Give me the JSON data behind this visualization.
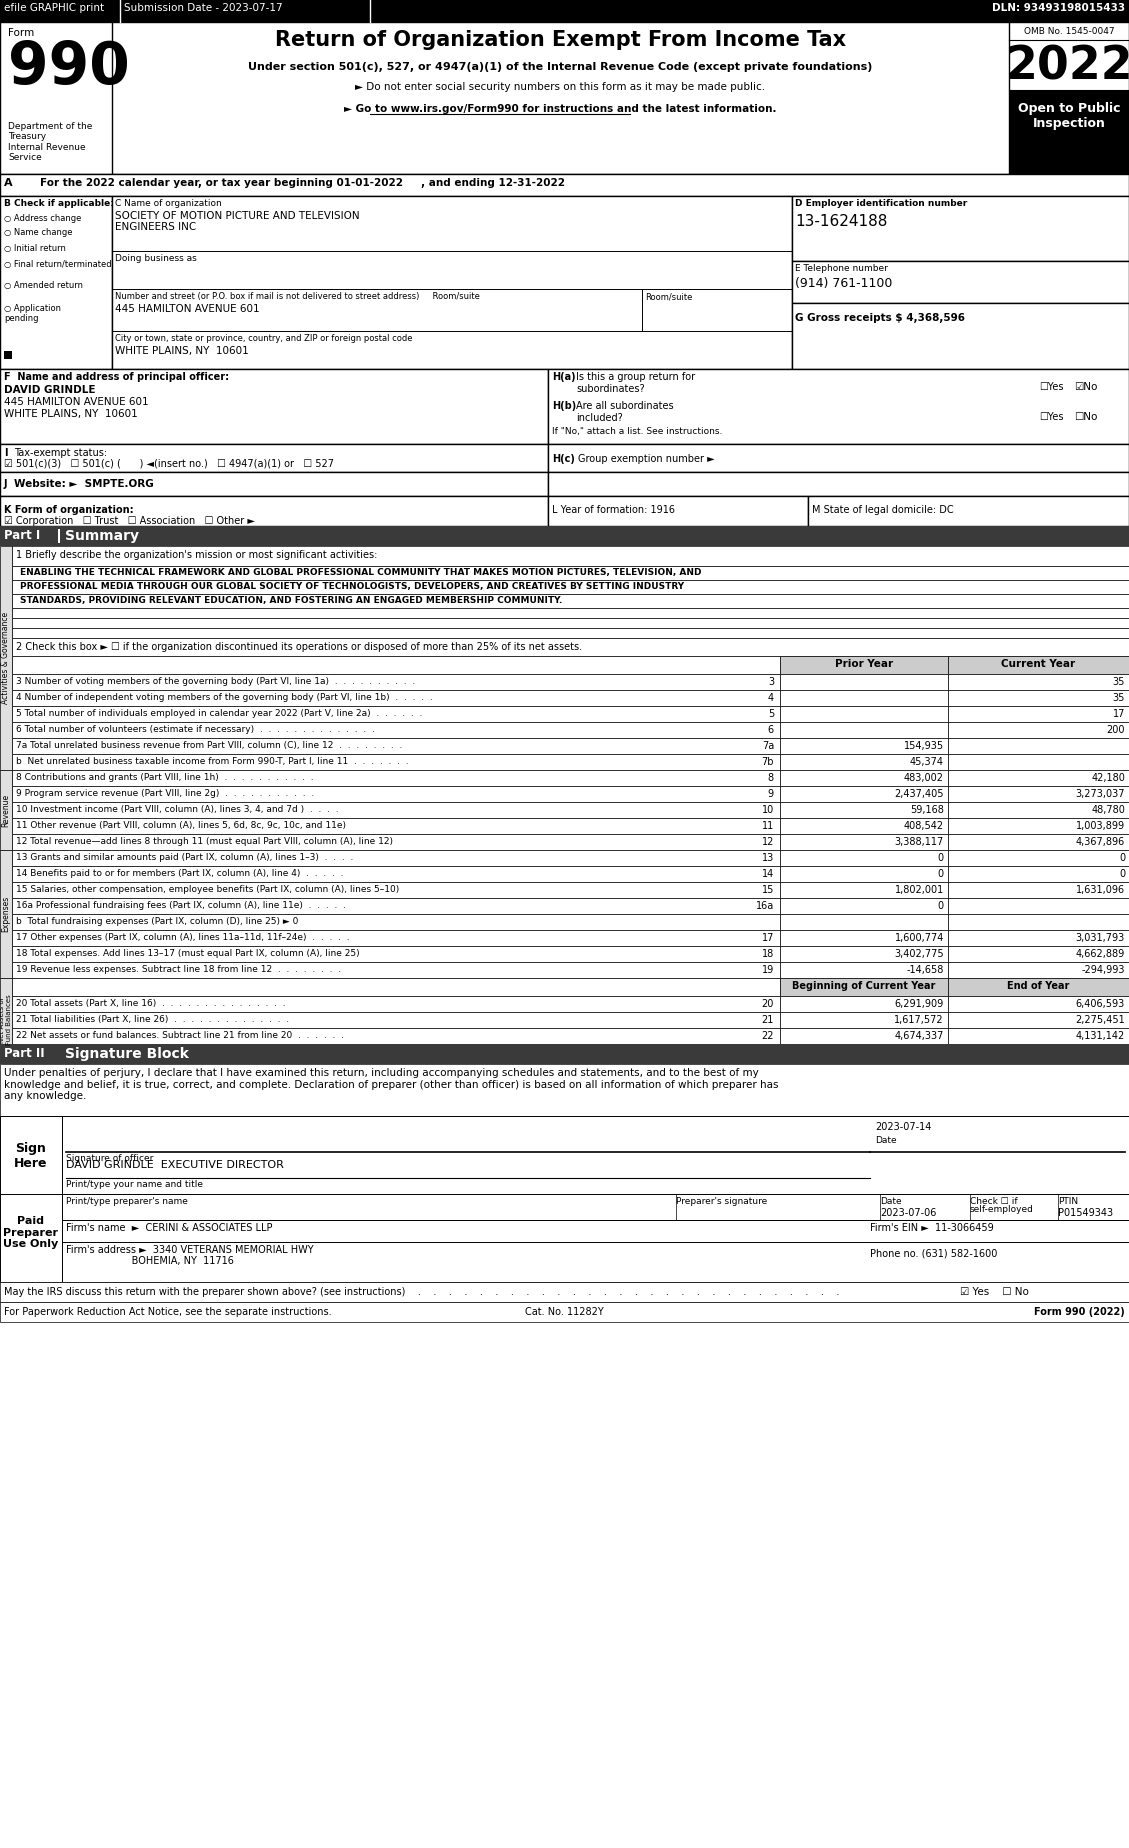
{
  "title": "Return of Organization Exempt From Income Tax",
  "subtitle1": "Under section 501(c), 527, or 4947(a)(1) of the Internal Revenue Code (except private foundations)",
  "subtitle2": "► Do not enter social security numbers on this form as it may be made public.",
  "subtitle3": "► Go to www.irs.gov/Form990 for instructions and the latest information.",
  "omb": "OMB No. 1545-0047",
  "year": "2022",
  "tax_year_line": "For the 2022 calendar year, or tax year beginning 01-01-2022     , and ending 12-31-2022",
  "org_name1": "SOCIETY OF MOTION PICTURE AND TELEVISION",
  "org_name2": "ENGINEERS INC",
  "dba_label": "Doing business as",
  "address_label": "Number and street (or P.O. box if mail is not delivered to street address)     Room/suite",
  "address": "445 HAMILTON AVENUE 601",
  "city_label": "City or town, state or province, country, and ZIP or foreign postal code",
  "city": "WHITE PLAINS, NY  10601",
  "ein": "13-1624188",
  "phone": "(914) 761-1100",
  "gross_receipts": "4,368,596",
  "officer_name": "DAVID GRINDLE",
  "officer_addr1": "445 HAMILTON AVENUE 601",
  "officer_addr2": "WHITE PLAINS, NY  10601",
  "mission1": "ENABLING THE TECHNICAL FRAMEWORK AND GLOBAL PROFESSIONAL COMMUNITY THAT MAKES MOTION PICTURES, TELEVISION, AND",
  "mission2": "PROFESSIONAL MEDIA THROUGH OUR GLOBAL SOCIETY OF TECHNOLOGISTS, DEVELOPERS, AND CREATIVES BY SETTING INDUSTRY",
  "mission3": "STANDARDS, PROVIDING RELEVANT EDUCATION, AND FOSTERING AN ENGAGED MEMBERSHIP COMMUNITY.",
  "line2_text": "2 Check this box ► ☐ if the organization discontinued its operations or disposed of more than 25% of its net assets.",
  "col_prior": "Prior Year",
  "col_curr": "Current Year",
  "col_begin": "Beginning of Current Year",
  "col_end": "End of Year",
  "rows_ag": [
    [
      "3",
      "3 Number of voting members of the governing body (Part VI, line 1a)  .  .  .  .  .  .  .  .  .  .",
      "",
      "35"
    ],
    [
      "4",
      "4 Number of independent voting members of the governing body (Part VI, line 1b)  .  .  .  .  .",
      "",
      "35"
    ],
    [
      "5",
      "5 Total number of individuals employed in calendar year 2022 (Part V, line 2a)  .  .  .  .  .  .",
      "",
      "17"
    ],
    [
      "6",
      "6 Total number of volunteers (estimate if necessary)  .  .  .  .  .  .  .  .  .  .  .  .  .  .",
      "",
      "200"
    ],
    [
      "7a",
      "7a Total unrelated business revenue from Part VIII, column (C), line 12  .  .  .  .  .  .  .  .",
      "154,935",
      ""
    ],
    [
      "7b",
      "b  Net unrelated business taxable income from Form 990-T, Part I, line 11  .  .  .  .  .  .  .",
      "45,374",
      ""
    ]
  ],
  "rows_rev": [
    [
      "8",
      "8 Contributions and grants (Part VIII, line 1h)  .  .  .  .  .  .  .  .  .  .  .",
      "483,002",
      "42,180"
    ],
    [
      "9",
      "9 Program service revenue (Part VIII, line 2g)  .  .  .  .  .  .  .  .  .  .  .",
      "2,437,405",
      "3,273,037"
    ],
    [
      "10",
      "10 Investment income (Part VIII, column (A), lines 3, 4, and 7d )  .  .  .  .",
      "59,168",
      "48,780"
    ],
    [
      "11",
      "11 Other revenue (Part VIII, column (A), lines 5, 6d, 8c, 9c, 10c, and 11e)",
      "408,542",
      "1,003,899"
    ],
    [
      "12",
      "12 Total revenue—add lines 8 through 11 (must equal Part VIII, column (A), line 12)",
      "3,388,117",
      "4,367,896"
    ]
  ],
  "rows_exp": [
    [
      "13",
      "13 Grants and similar amounts paid (Part IX, column (A), lines 1–3)  .  .  .  .",
      "0",
      "0"
    ],
    [
      "14",
      "14 Benefits paid to or for members (Part IX, column (A), line 4)  .  .  .  .  .",
      "0",
      "0"
    ],
    [
      "15",
      "15 Salaries, other compensation, employee benefits (Part IX, column (A), lines 5–10)",
      "1,802,001",
      "1,631,096"
    ],
    [
      "16a",
      "16a Professional fundraising fees (Part IX, column (A), line 11e)  .  .  .  .  .",
      "0",
      ""
    ],
    [
      "",
      "b  Total fundraising expenses (Part IX, column (D), line 25) ► 0",
      "",
      ""
    ],
    [
      "17",
      "17 Other expenses (Part IX, column (A), lines 11a–11d, 11f–24e)  .  .  .  .  .",
      "1,600,774",
      "3,031,793"
    ],
    [
      "18",
      "18 Total expenses. Add lines 13–17 (must equal Part IX, column (A), line 25)",
      "3,402,775",
      "4,662,889"
    ],
    [
      "19",
      "19 Revenue less expenses. Subtract line 18 from line 12  .  .  .  .  .  .  .  .",
      "-14,658",
      "-294,993"
    ]
  ],
  "rows_na": [
    [
      "20",
      "20 Total assets (Part X, line 16)  .  .  .  .  .  .  .  .  .  .  .  .  .  .  .",
      "6,291,909",
      "6,406,593"
    ],
    [
      "21",
      "21 Total liabilities (Part X, line 26)  .  .  .  .  .  .  .  .  .  .  .  .  .  .",
      "1,617,572",
      "2,275,451"
    ],
    [
      "22",
      "22 Net assets or fund balances. Subtract line 21 from line 20  .  .  .  .  .  .",
      "4,674,337",
      "4,131,142"
    ]
  ],
  "sig_text": "Under penalties of perjury, I declare that I have examined this return, including accompanying schedules and statements, and to the best of my\nknowledge and belief, it is true, correct, and complete. Declaration of preparer (other than officer) is based on all information of which preparer has\nany knowledge.",
  "sig_date": "2023-07-14",
  "sig_officer": "DAVID GRINDLE  EXECUTIVE DIRECTOR",
  "prep_date": "2023-07-06",
  "prep_ptin": "P01549343",
  "firm_name": "CERINI & ASSOCIATES LLP",
  "firm_ein": "11-3066459",
  "firm_addr": "3340 VETERANS MEMORIAL HWY",
  "firm_city": "BOHEMIA, NY  11716",
  "firm_phone": "(631) 582-1600",
  "discuss_label": "May the IRS discuss this return with the preparer shown above? (see instructions)",
  "paperwork_label": "For Paperwork Reduction Act Notice, see the separate instructions.",
  "cat_label": "Cat. No. 11282Y",
  "form_footer": "Form 990 (2022)"
}
